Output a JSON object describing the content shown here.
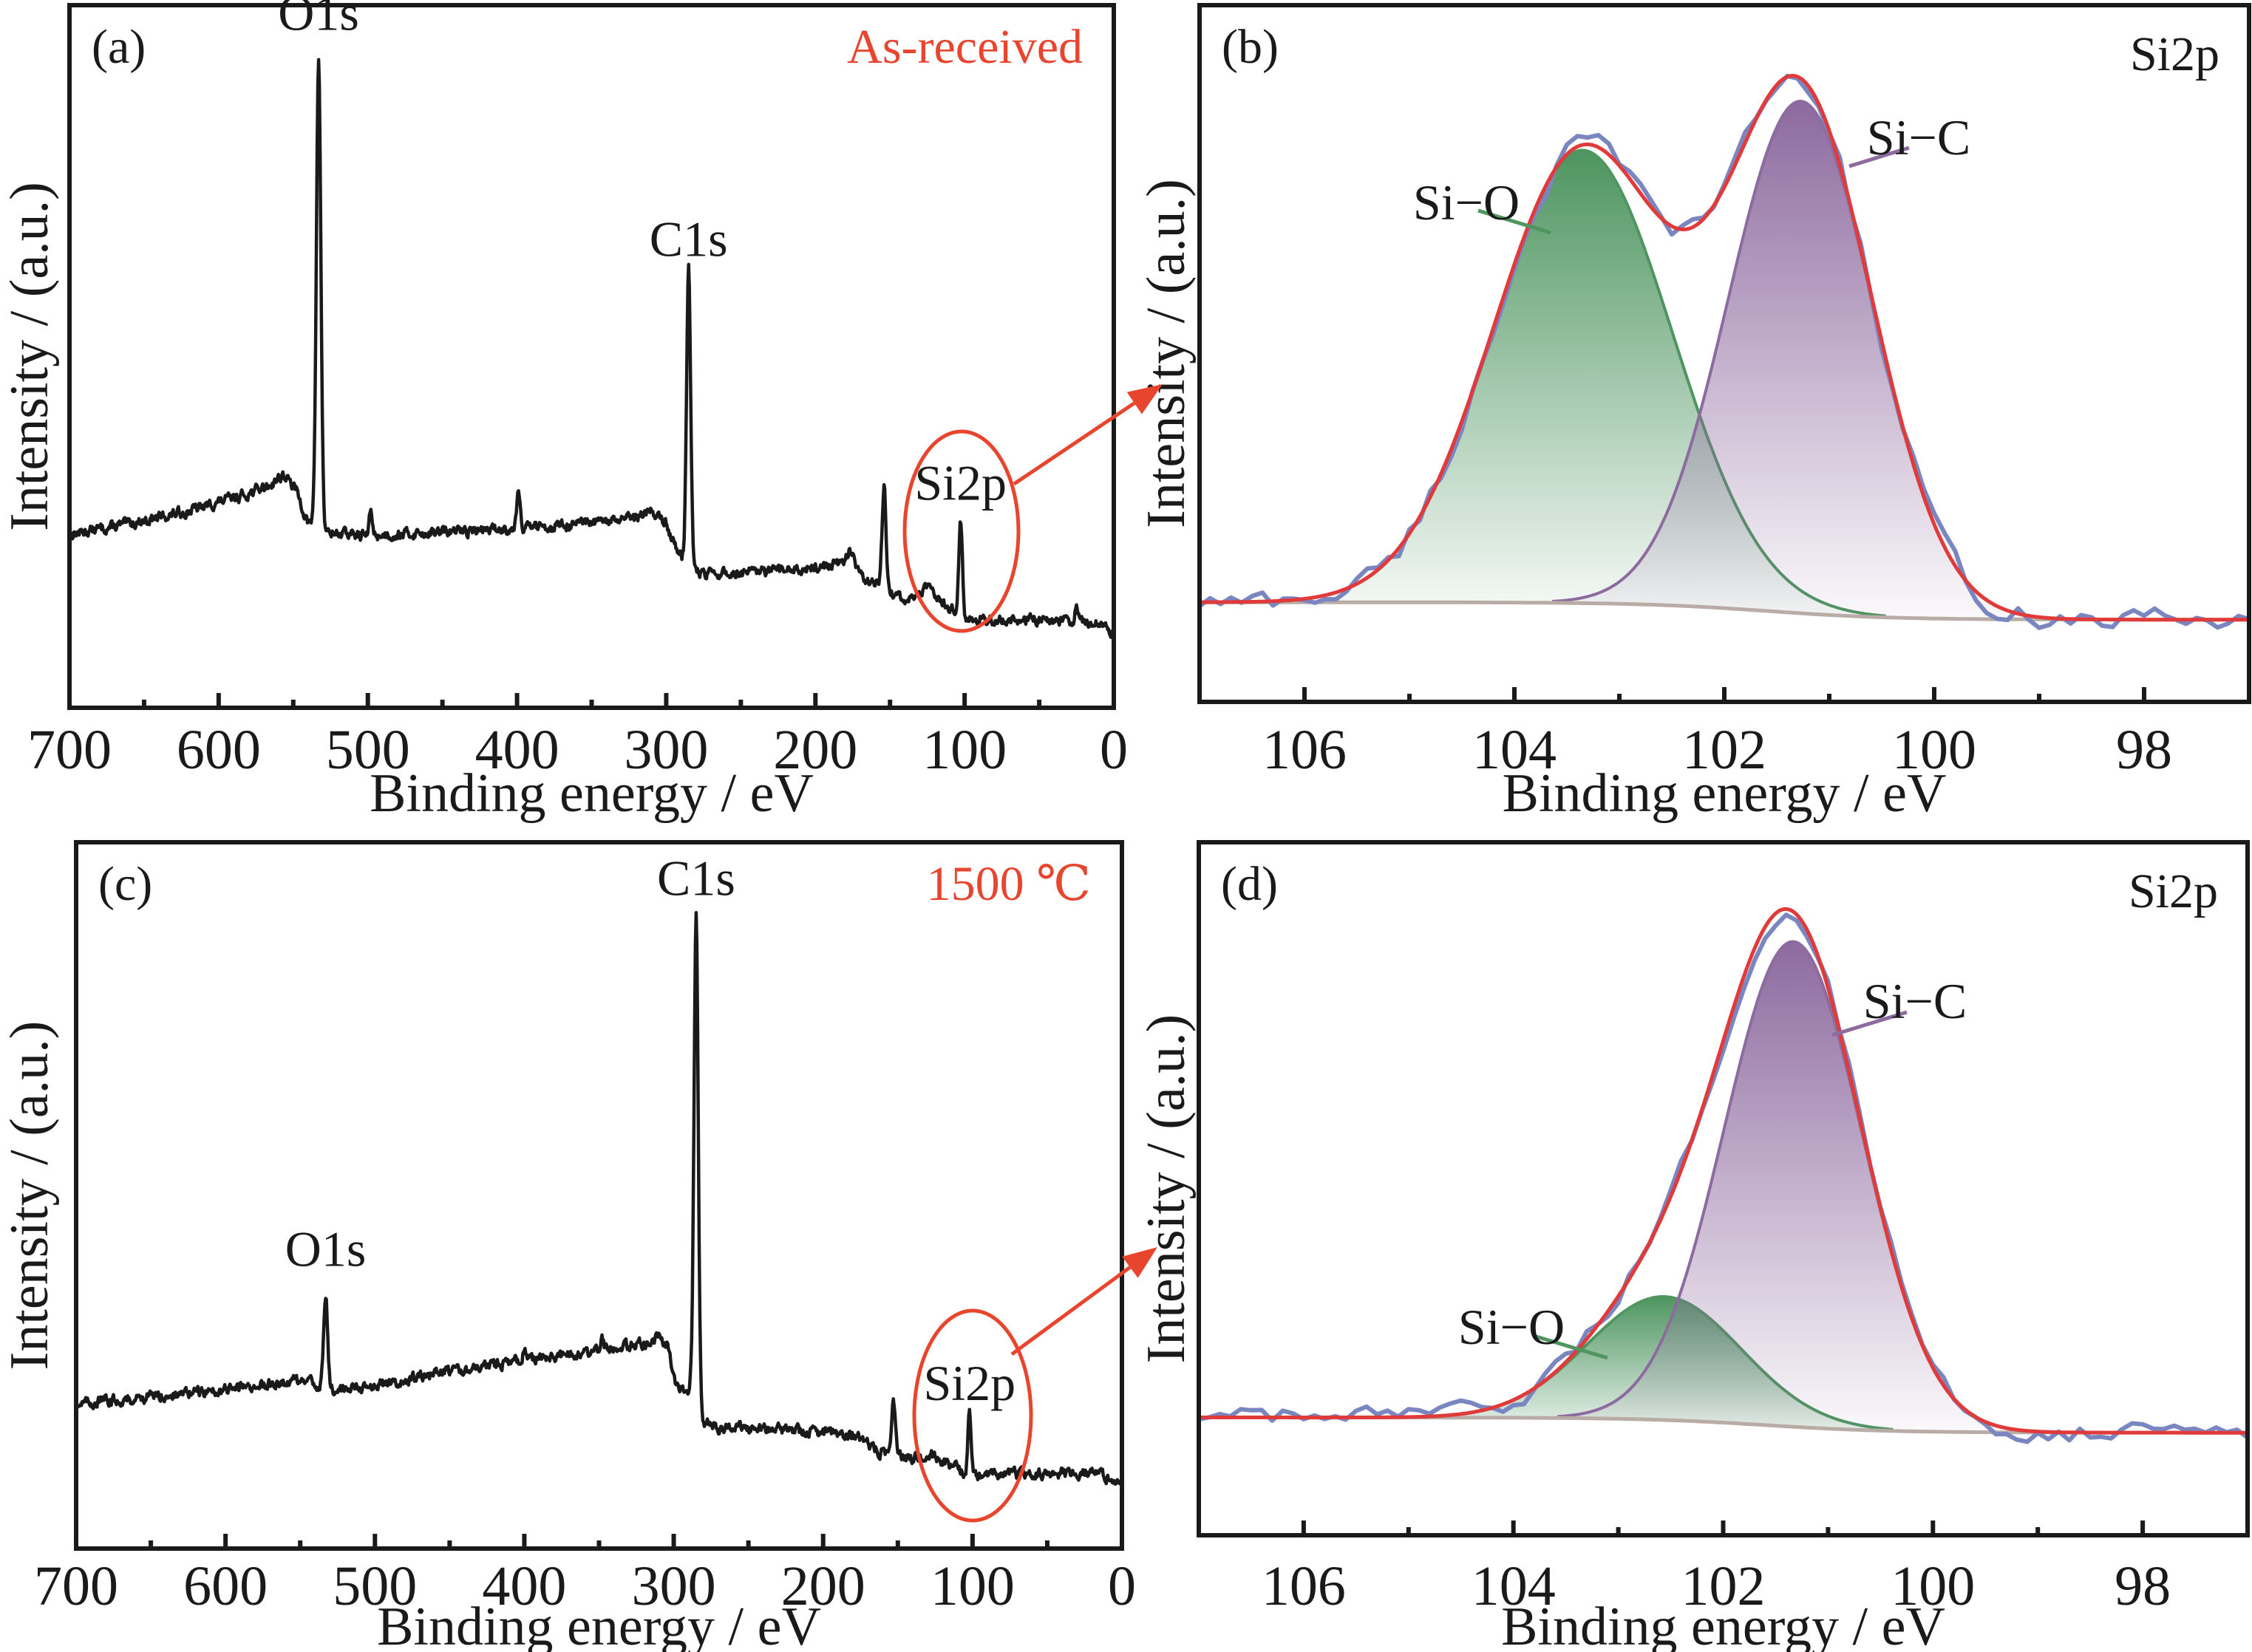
{
  "figure": {
    "accent_color": "#e8452f",
    "line_color": "#1a1a1a"
  },
  "chart_data": [
    {
      "id": "a",
      "type": "line",
      "panel_label": "(a)",
      "condition_label": "As-received",
      "xlabel": "Binding energy / eV",
      "ylabel": "Intensity / (a.u.)",
      "xlim": [
        700,
        0
      ],
      "ylim": [
        0,
        1
      ],
      "x_ticks": [
        700,
        600,
        500,
        400,
        300,
        200,
        100,
        0
      ],
      "x_tick_labels": [
        "700",
        "600",
        "500",
        "400",
        "300",
        "200",
        "100",
        "0"
      ],
      "x_minor_ticks": [
        650,
        550,
        450,
        350,
        250,
        150,
        50
      ],
      "grid": false,
      "legend": "none",
      "background_points": [
        [
          700,
          0.247
        ],
        [
          660,
          0.262
        ],
        [
          620,
          0.28
        ],
        [
          580,
          0.305
        ],
        [
          565,
          0.318
        ],
        [
          557,
          0.332
        ],
        [
          548,
          0.31
        ],
        [
          540,
          0.262
        ],
        [
          528,
          0.25
        ],
        [
          500,
          0.245
        ],
        [
          450,
          0.25
        ],
        [
          400,
          0.256
        ],
        [
          350,
          0.262
        ],
        [
          320,
          0.27
        ],
        [
          310,
          0.282
        ],
        [
          300,
          0.262
        ],
        [
          292,
          0.222
        ],
        [
          285,
          0.2
        ],
        [
          275,
          0.19
        ],
        [
          240,
          0.192
        ],
        [
          200,
          0.2
        ],
        [
          180,
          0.207
        ],
        [
          172,
          0.2
        ],
        [
          165,
          0.18
        ],
        [
          155,
          0.17
        ],
        [
          140,
          0.151
        ],
        [
          125,
          0.17
        ],
        [
          118,
          0.16
        ],
        [
          108,
          0.138
        ],
        [
          100,
          0.128
        ],
        [
          80,
          0.124
        ],
        [
          60,
          0.126
        ],
        [
          30,
          0.124
        ],
        [
          15,
          0.122
        ],
        [
          5,
          0.116
        ],
        [
          0,
          0.108
        ]
      ],
      "peaks": [
        {
          "name": "O1s",
          "energy": 533,
          "height": 0.67,
          "width": 2.2
        },
        {
          "name": "",
          "energy": 498,
          "height": 0.035,
          "width": 1.5
        },
        {
          "name": "",
          "energy": 399,
          "height": 0.055,
          "width": 1.8
        },
        {
          "name": "C1s",
          "energy": 285,
          "height": 0.43,
          "width": 2.0
        },
        {
          "name": "",
          "energy": 177,
          "height": 0.02,
          "width": 3.0
        },
        {
          "name": "",
          "energy": 154,
          "height": 0.15,
          "width": 1.9
        },
        {
          "name": "Si2p",
          "energy": 102.7,
          "height": 0.14,
          "width": 1.8
        },
        {
          "name": "",
          "energy": 25,
          "height": 0.018,
          "width": 1.5
        }
      ],
      "peak_labels": [
        {
          "text": "O1s",
          "energy": 533,
          "level": 0.965
        },
        {
          "text": "C1s",
          "energy": 285,
          "level": 0.643
        },
        {
          "text": "Si2p",
          "energy": 102.7,
          "level": 0.296
        }
      ],
      "highlight": {
        "energy": 102.7,
        "level": 0.25,
        "arrow_to": "b"
      }
    },
    {
      "id": "b",
      "type": "area",
      "panel_label": "(b)",
      "region_label": "Si2p",
      "xlabel": "Binding energy / eV",
      "ylabel": "Intensity / (a.u.)",
      "xlim": [
        107,
        97
      ],
      "ylim": [
        0,
        1
      ],
      "x_ticks": [
        106,
        104,
        102,
        100,
        98
      ],
      "x_tick_labels": [
        "106",
        "104",
        "102",
        "100",
        "98"
      ],
      "x_minor_ticks": [
        105,
        103,
        101,
        99
      ],
      "grid": false,
      "legend": "none",
      "background": {
        "left": 0.143,
        "right": 0.118,
        "step_center": 101.6,
        "step_width": 1.0
      },
      "components": [
        {
          "name": "Si−O",
          "center": 103.35,
          "height": 0.65,
          "sigma": 0.85,
          "color": "#4e9560"
        },
        {
          "name": "Si−C",
          "center": 101.27,
          "height": 0.735,
          "sigma": 0.69,
          "color": "#8d6a9f"
        }
      ],
      "component_labels": [
        {
          "text": "Si−O",
          "component": 0
        },
        {
          "text": "Si−C",
          "component": 1
        }
      ],
      "envelope_color": "#e03a3a",
      "raw_color": "#7a86c0",
      "background_color": "#b9aca6",
      "raw_noise": 0.014
    },
    {
      "id": "c",
      "type": "line",
      "panel_label": "(c)",
      "condition_label": "1500 ℃",
      "xlabel": "Binding energy / eV",
      "ylabel": "Intensity / (a.u.)",
      "xlim": [
        700,
        0
      ],
      "ylim": [
        0,
        1
      ],
      "x_ticks": [
        700,
        600,
        500,
        400,
        300,
        200,
        100,
        0
      ],
      "x_tick_labels": [
        "700",
        "600",
        "500",
        "400",
        "300",
        "200",
        "100",
        "0"
      ],
      "x_minor_ticks": [
        650,
        550,
        450,
        350,
        250,
        150,
        50
      ],
      "grid": false,
      "legend": "none",
      "background_points": [
        [
          700,
          0.205
        ],
        [
          650,
          0.215
        ],
        [
          600,
          0.225
        ],
        [
          555,
          0.238
        ],
        [
          540,
          0.232
        ],
        [
          528,
          0.224
        ],
        [
          500,
          0.232
        ],
        [
          450,
          0.25
        ],
        [
          400,
          0.266
        ],
        [
          360,
          0.276
        ],
        [
          350,
          0.282
        ],
        [
          320,
          0.29
        ],
        [
          310,
          0.298
        ],
        [
          304,
          0.285
        ],
        [
          298,
          0.23
        ],
        [
          292,
          0.222
        ],
        [
          287,
          0.24
        ],
        [
          280,
          0.18
        ],
        [
          270,
          0.172
        ],
        [
          230,
          0.168
        ],
        [
          200,
          0.164
        ],
        [
          180,
          0.162
        ],
        [
          170,
          0.148
        ],
        [
          162,
          0.138
        ],
        [
          150,
          0.133
        ],
        [
          140,
          0.127
        ],
        [
          128,
          0.134
        ],
        [
          120,
          0.125
        ],
        [
          110,
          0.112
        ],
        [
          100,
          0.104
        ],
        [
          60,
          0.106
        ],
        [
          20,
          0.108
        ],
        [
          10,
          0.102
        ],
        [
          0,
          0.094
        ]
      ],
      "peaks": [
        {
          "name": "O1s",
          "energy": 533,
          "height": 0.13,
          "width": 2.0
        },
        {
          "name": "",
          "energy": 400,
          "height": 0.015,
          "width": 1.5
        },
        {
          "name": "",
          "energy": 348,
          "height": 0.014,
          "width": 1.5
        },
        {
          "name": "C1s",
          "energy": 285,
          "height": 0.68,
          "width": 2.0
        },
        {
          "name": "",
          "energy": 153,
          "height": 0.08,
          "width": 1.8
        },
        {
          "name": "Si2p",
          "energy": 102,
          "height": 0.086,
          "width": 1.6
        }
      ],
      "peak_labels": [
        {
          "text": "O1s",
          "energy": 533,
          "level": 0.4
        },
        {
          "text": "C1s",
          "energy": 285,
          "level": 0.925
        },
        {
          "text": "Si2p",
          "energy": 102,
          "level": 0.21
        }
      ],
      "highlight": {
        "energy": 102,
        "level": 0.188,
        "arrow_to": "d"
      }
    },
    {
      "id": "d",
      "type": "area",
      "panel_label": "(d)",
      "region_label": "Si2p",
      "xlabel": "Binding energy / eV",
      "ylabel": "Intensity / (a.u.)",
      "xlim": [
        107,
        97
      ],
      "ylim": [
        0,
        1
      ],
      "x_ticks": [
        106,
        104,
        102,
        100,
        98
      ],
      "x_tick_labels": [
        "106",
        "104",
        "102",
        "100",
        "98"
      ],
      "x_minor_ticks": [
        105,
        103,
        101,
        99
      ],
      "grid": false,
      "legend": "none",
      "background": {
        "left": 0.17,
        "right": 0.148,
        "step_center": 101.6,
        "step_width": 1.0
      },
      "components": [
        {
          "name": "Si−O",
          "center": 102.56,
          "height": 0.178,
          "sigma": 0.73,
          "color": "#4e9560"
        },
        {
          "name": "Si−C",
          "center": 101.33,
          "height": 0.7,
          "sigma": 0.66,
          "color": "#8d6a9f"
        }
      ],
      "component_labels": [
        {
          "text": "Si−O",
          "component": 0
        },
        {
          "text": "Si−C",
          "component": 1
        }
      ],
      "envelope_color": "#e03a3a",
      "raw_color": "#7a86c0",
      "background_color": "#b9aca6",
      "raw_noise": 0.012
    }
  ]
}
